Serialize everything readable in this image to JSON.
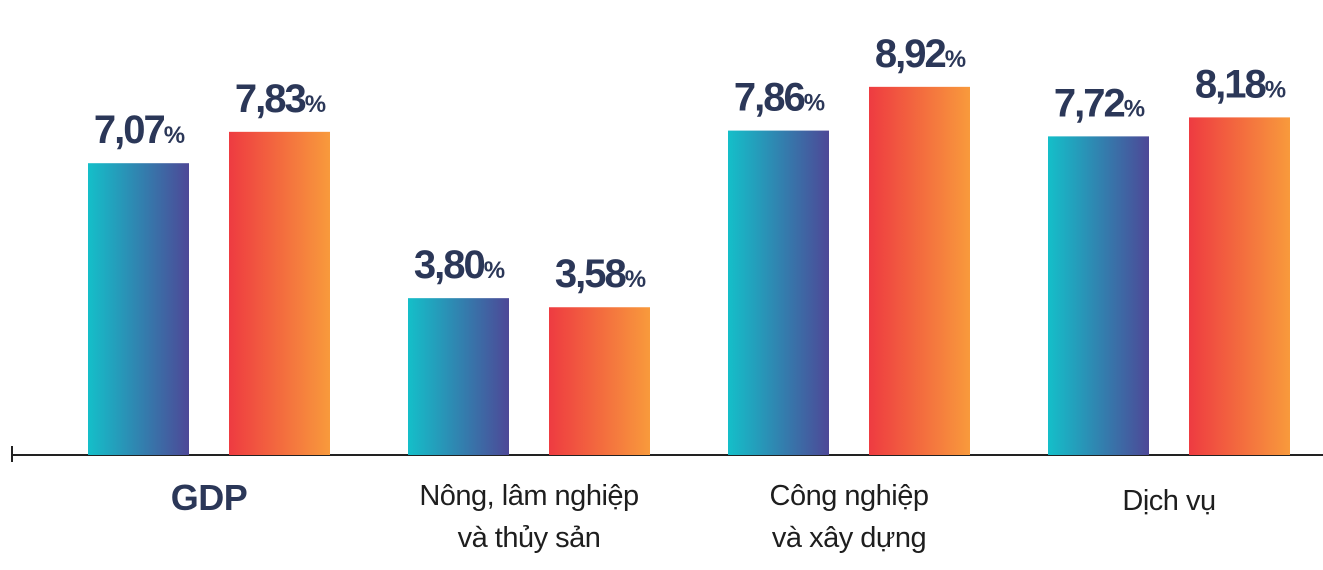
{
  "chart_data": {
    "type": "bar",
    "categories": [
      "GDP",
      "Nông, lâm nghiệp\nvà thủy sản",
      "Công nghiệp\nvà xây dựng",
      "Dịch vụ"
    ],
    "series": [
      {
        "colors": [
          "#14bfc9",
          "#4d4897"
        ],
        "values": [
          7.07,
          3.8,
          7.86,
          7.72
        ],
        "value_labels": [
          "7,07%",
          "3,80%",
          "7,86%",
          "7,72%"
        ]
      },
      {
        "colors": [
          "#ee3b41",
          "#f89a3c"
        ],
        "values": [
          7.83,
          3.58,
          8.92,
          8.18
        ],
        "value_labels": [
          "7,83%",
          "3,58%",
          "8,92%",
          "8,18%"
        ]
      }
    ],
    "ylim": [
      0,
      11
    ]
  }
}
